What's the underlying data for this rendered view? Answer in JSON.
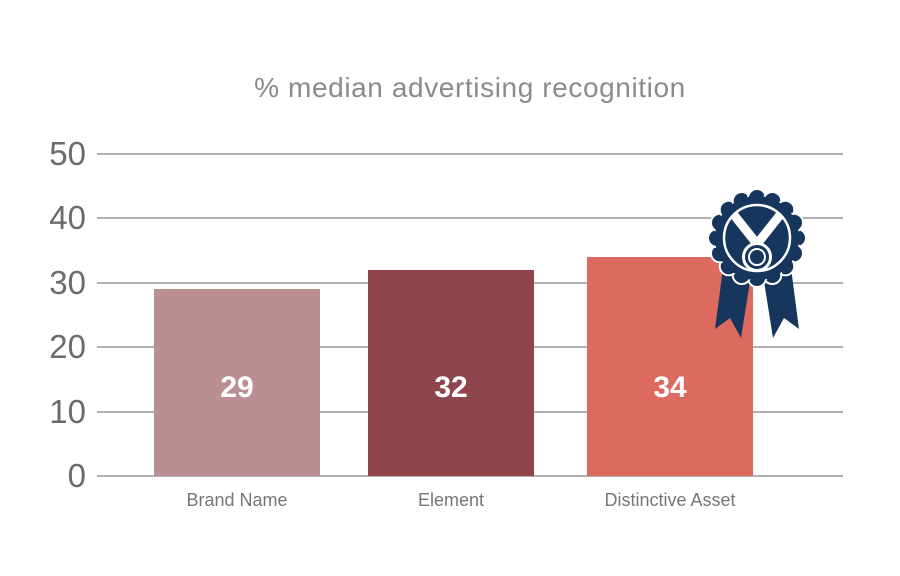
{
  "chart_data": {
    "type": "bar",
    "title": "% median advertising recognition",
    "categories": [
      "Brand Name",
      "Element",
      "Distinctive Asset"
    ],
    "values": [
      29,
      32,
      34
    ],
    "series": [
      {
        "name": "% median advertising recognition",
        "values": [
          29,
          32,
          34
        ]
      }
    ],
    "bar_colors": [
      "#bb8e94",
      "#8e454c",
      "#dd6a5e"
    ],
    "value_labels": [
      "29",
      "32",
      "34"
    ],
    "value_label_color": "#ffffff",
    "xlabel": "",
    "ylabel": "",
    "ylim": [
      0,
      50
    ],
    "yticks": [
      50,
      40,
      30,
      20,
      10,
      0
    ],
    "grid": true,
    "legend": false,
    "annotations": [
      {
        "icon": "award-medal-icon",
        "target": "Distinctive Asset",
        "color": "#17365d"
      }
    ]
  },
  "colors": {
    "background": "#ffffff",
    "gridline": "#b0b0b0",
    "title_text": "#8b8b8b",
    "ytick_text": "#6b6b6b",
    "category_text": "#767676",
    "medal_navy": "#17365d"
  }
}
